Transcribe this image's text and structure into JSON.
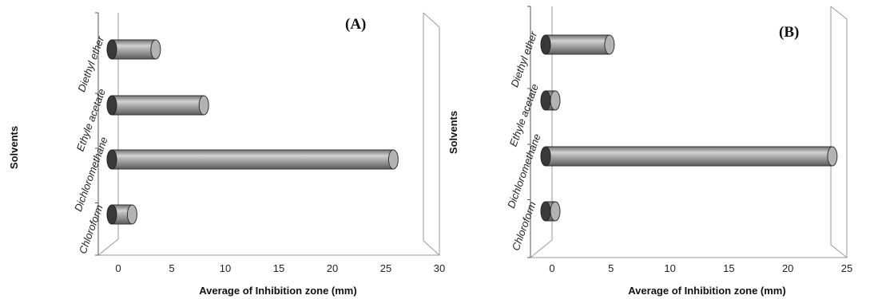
{
  "chart_data": [
    {
      "type": "bar",
      "orientation": "horizontal",
      "style": "3d-cylinder",
      "panel_label": "(A)",
      "categories": [
        "Diethyl ether",
        "Ethyle acetate",
        "Dichloromethane",
        "Chloroform"
      ],
      "values": [
        3.2,
        7.7,
        25.4,
        1.0
      ],
      "x_ticks": [
        "0",
        "5",
        "10",
        "15",
        "20",
        "25",
        "30"
      ],
      "xlim": [
        0,
        30
      ],
      "xlabel": "Average of Inhibition zone (mm)",
      "ylabel": "Solvents",
      "bar_color": "#9a9a9a"
    },
    {
      "type": "bar",
      "orientation": "horizontal",
      "style": "3d-cylinder",
      "panel_label": "(B)",
      "categories": [
        "Diethyl ether",
        "Ethyle acetate",
        "Dichloromethane",
        "Chloroform"
      ],
      "values": [
        4.6,
        0,
        23.5,
        0
      ],
      "x_ticks": [
        "0",
        "5",
        "10",
        "15",
        "20",
        "25"
      ],
      "xlim": [
        0,
        25
      ],
      "xlabel": "Average of Inhibition zone (mm)",
      "ylabel": "Solvents",
      "bar_color": "#9a9a9a"
    }
  ]
}
